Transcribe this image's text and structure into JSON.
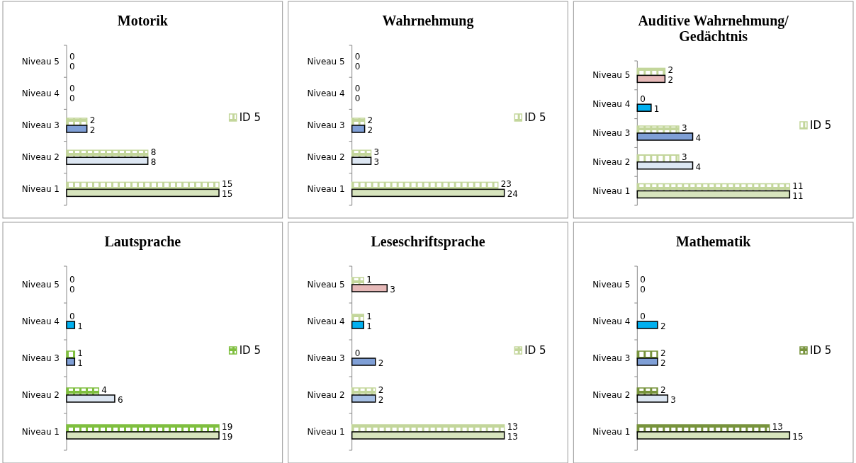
{
  "chart_data": [
    {
      "type": "bar",
      "orientation": "horizontal",
      "title": "Motorik",
      "categories": [
        "Niveau 5",
        "Niveau 4",
        "Niveau 3",
        "Niveau 2",
        "Niveau 1"
      ],
      "data_labels": true,
      "legend": "right",
      "series": [
        {
          "name": "ID 5",
          "color": "#c3d69b",
          "values": [
            0,
            0,
            2,
            8,
            15
          ]
        },
        {
          "colors": [
            "#e6b9b8",
            "#00b0f0",
            "#7f9fd6",
            "#dce6f2",
            "#d7e4bd"
          ],
          "values": [
            0,
            0,
            2,
            8,
            15
          ]
        }
      ]
    },
    {
      "type": "bar",
      "orientation": "horizontal",
      "title": "Wahrnehmung",
      "categories": [
        "Niveau 5",
        "Niveau 4",
        "Niveau 3",
        "Niveau 2",
        "Niveau 1"
      ],
      "data_labels": true,
      "legend": "right",
      "series": [
        {
          "name": "ID 5",
          "color": "#c3d69b",
          "values": [
            0,
            0,
            2,
            3,
            23
          ]
        },
        {
          "colors": [
            "#e6b9b8",
            "#00b0f0",
            "#7f9fd6",
            "#dce6f2",
            "#d7e4bd"
          ],
          "values": [
            0,
            0,
            2,
            3,
            24
          ]
        }
      ]
    },
    {
      "type": "bar",
      "orientation": "horizontal",
      "title": "Auditive Wahrnehmung/ Gedächtnis",
      "categories": [
        "Niveau 5",
        "Niveau 4",
        "Niveau 3",
        "Niveau 2",
        "Niveau 1"
      ],
      "data_labels": true,
      "legend": "right",
      "series": [
        {
          "name": "ID 5",
          "color": "#c3d69b",
          "values": [
            2,
            0,
            3,
            3,
            11
          ]
        },
        {
          "colors": [
            "#e6b9b8",
            "#00b0f0",
            "#7f9fd6",
            "#dce6f2",
            "#d7e4bd"
          ],
          "values": [
            2,
            1,
            4,
            4,
            11
          ]
        }
      ]
    },
    {
      "type": "bar",
      "orientation": "horizontal",
      "title": "Lautsprache",
      "categories": [
        "Niveau 5",
        "Niveau 4",
        "Niveau 3",
        "Niveau 2",
        "Niveau 1"
      ],
      "data_labels": true,
      "legend": "right",
      "series": [
        {
          "name": "ID 5",
          "color": "#7fbf3f",
          "values": [
            0,
            0,
            1,
            4,
            19
          ]
        },
        {
          "colors": [
            "#e6b9b8",
            "#00b0f0",
            "#7f9fd6",
            "#dce6f2",
            "#d7e4bd"
          ],
          "values": [
            0,
            1,
            1,
            6,
            19
          ]
        }
      ]
    },
    {
      "type": "bar",
      "orientation": "horizontal",
      "title": "Leseschriftsprache",
      "categories": [
        "Niveau 5",
        "Niveau 4",
        "Niveau 3",
        "Niveau 2",
        "Niveau 1"
      ],
      "data_labels": true,
      "legend": "right",
      "series": [
        {
          "name": "ID 5",
          "color": "#c3d69b",
          "values": [
            1,
            1,
            0,
            2,
            13
          ]
        },
        {
          "colors": [
            "#e6b9b8",
            "#00b0f0",
            "#7f9fd6",
            "#a6c0e4",
            "#d7e4bd"
          ],
          "values": [
            3,
            1,
            2,
            2,
            13
          ]
        }
      ]
    },
    {
      "type": "bar",
      "orientation": "horizontal",
      "title": "Mathematik",
      "categories": [
        "Niveau 5",
        "Niveau 4",
        "Niveau 3",
        "Niveau 2",
        "Niveau 1"
      ],
      "data_labels": true,
      "legend": "right",
      "series": [
        {
          "name": "ID 5",
          "color": "#77933c",
          "values": [
            0,
            0,
            2,
            2,
            13
          ]
        },
        {
          "colors": [
            "#e6b9b8",
            "#00b0f0",
            "#7f9fd6",
            "#dce6f2",
            "#d7e4bd"
          ],
          "values": [
            0,
            2,
            2,
            3,
            15
          ]
        }
      ]
    }
  ]
}
